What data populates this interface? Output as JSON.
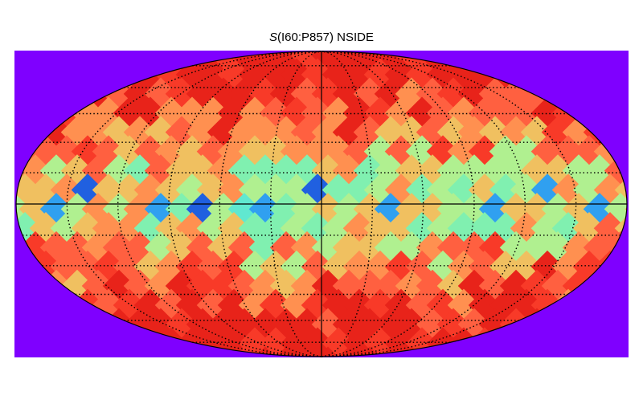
{
  "chart_data": {
    "type": "heatmap",
    "projection": "mollweide",
    "title_italic": "S",
    "title_rest": "(I60:P857) NSIDE",
    "colormap": "rainbow",
    "background_color": "#7f00ff",
    "grid": true,
    "graticule_lon_step_deg": 30,
    "graticule_lat_step_deg": 15,
    "colors": {
      "deep_blue": "#2060e0",
      "blue": "#30a0f0",
      "cyan": "#60e8d0",
      "aqua": "#80f0b0",
      "green": "#b0f090",
      "yellow": "#f0c060",
      "orange": "#ff9050",
      "orange_red": "#ff6040",
      "red": "#f83a28",
      "dark_red": "#e8231a"
    }
  }
}
